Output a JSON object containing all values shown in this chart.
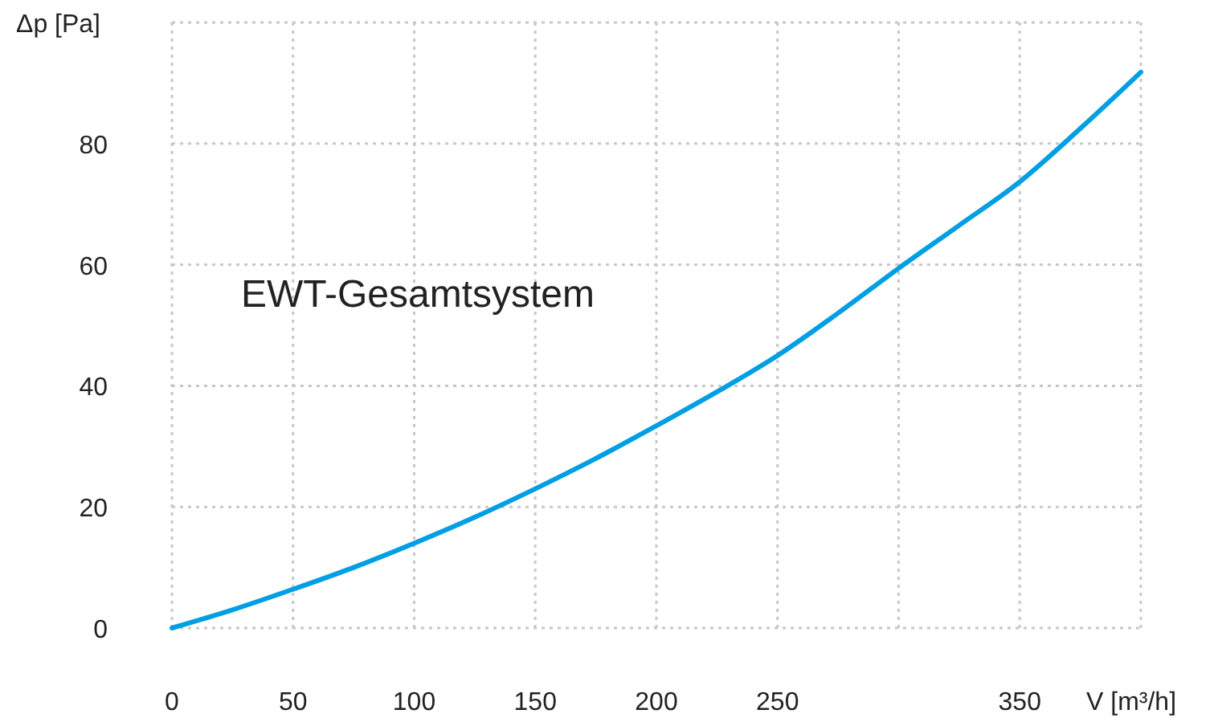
{
  "chart_data": {
    "type": "line",
    "xlabel": "V [m³/h]",
    "ylabel": "Δp [Pa]",
    "annotations": [
      "EWT-Gesamtsystem"
    ],
    "x": [
      0,
      25,
      50,
      75,
      100,
      125,
      150,
      175,
      200,
      225,
      250,
      275,
      300,
      325,
      350,
      375,
      400
    ],
    "series": [
      {
        "color": "#009fe3",
        "values": [
          0,
          3,
          6.4,
          10,
          14,
          18.3,
          23,
          28,
          33.4,
          39,
          45,
          52,
          59.4,
          66.5,
          73.7,
          82.5,
          91.8
        ]
      }
    ],
    "xlim": [
      0,
      400
    ],
    "xticks": [
      0,
      50,
      100,
      150,
      200,
      250,
      {
        "value": 300,
        "label": null
      },
      350,
      {
        "value": 400,
        "label": null
      }
    ],
    "ylim": [
      0,
      100
    ],
    "yticks": [
      0,
      20,
      40,
      60,
      80,
      {
        "value": 100,
        "label": null
      }
    ],
    "grid": true,
    "marker": "none",
    "line_style": "solid"
  }
}
